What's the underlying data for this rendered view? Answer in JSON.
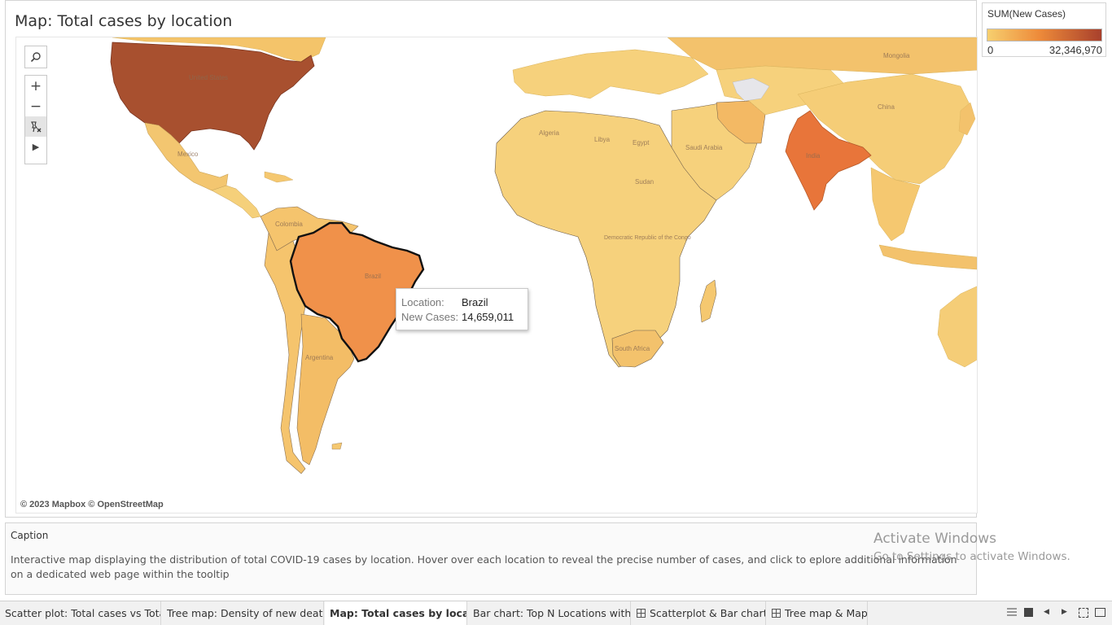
{
  "worksheet": {
    "title": "Map: Total cases by location",
    "attribution": "© 2023 Mapbox © OpenStreetMap"
  },
  "map_labels": {
    "united_states": "United States",
    "mexico": "Mexico",
    "colombia": "Colombia",
    "brazil": "Brazil",
    "argentina": "Argentina",
    "algeria": "Algeria",
    "libya": "Libya",
    "egypt": "Egypt",
    "saudi_arabia": "Saudi Arabia",
    "sudan": "Sudan",
    "dr_congo": "Democratic Republic of the Congo",
    "south_africa": "South Africa",
    "india": "India",
    "china": "China",
    "mongolia": "Mongolia"
  },
  "map_tools": {
    "search_icon": "magnifier-icon",
    "zoom_in": "+",
    "zoom_out": "−",
    "reset_icon": "pin-reset-icon",
    "expand": "▶"
  },
  "tooltip": {
    "location_label": "Location:",
    "location_value": "Brazil",
    "cases_label": "New Cases:",
    "cases_value": "14,659,011"
  },
  "legend": {
    "title": "SUM(New Cases)",
    "min": "0",
    "max": "32,346,970",
    "color_low": "#f6cf6f",
    "color_mid": "#ee8b3a",
    "color_high": "#a8402c"
  },
  "caption": {
    "title": "Caption",
    "text": "Interactive map displaying the distribution of total COVID-19 cases by location. Hover over each location to reveal the precise number of cases, and click to eplore additional information on a dedicated web page within the tooltip"
  },
  "watermark": {
    "line1": "Activate Windows",
    "line2": "Go to Settings to activate Windows."
  },
  "tabs": [
    {
      "label": "Scatter plot: Total cases vs Tota...",
      "active": false
    },
    {
      "label": "Tree map: Density of new death...",
      "active": false
    },
    {
      "label": "Map: Total cases by location",
      "active": true
    },
    {
      "label": "Bar chart: Top N Locations with ...",
      "active": false
    },
    {
      "label": "Scatterplot & Bar chart",
      "active": false
    },
    {
      "label": "Tree map & Map",
      "active": false
    }
  ],
  "nav": {
    "grid_icon": "sheet-grid-icon",
    "single_icon": "sheet-single-icon",
    "prev": "◀",
    "next": "▶",
    "fit_icon": "fit-icon",
    "present_icon": "presentation-icon"
  }
}
